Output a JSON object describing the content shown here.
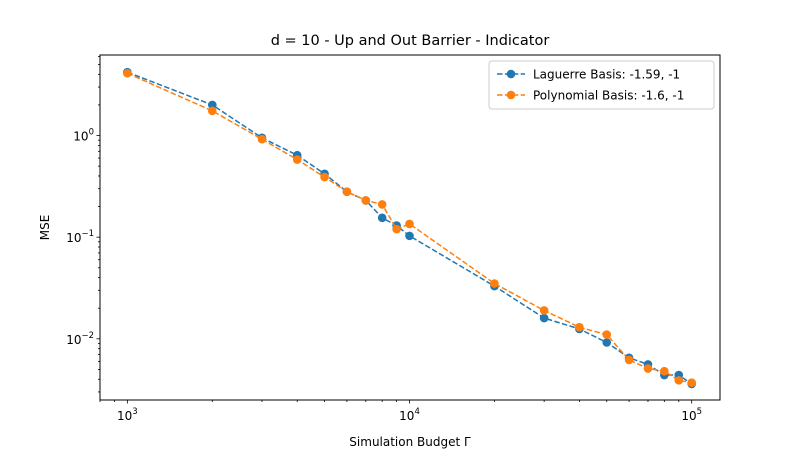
{
  "chart_data": {
    "type": "line",
    "title": "d = 10 - Up and Out Barrier - Indicator",
    "xlabel": "Simulation Budget Γ",
    "ylabel": "MSE",
    "xscale": "log",
    "yscale": "log",
    "xlim": [
      800,
      126000
    ],
    "ylim": [
      0.0025,
      6.2
    ],
    "x_ticks": [
      {
        "value": 1000,
        "base": "10",
        "exp": "3"
      },
      {
        "value": 10000,
        "base": "10",
        "exp": "4"
      },
      {
        "value": 100000,
        "base": "10",
        "exp": "5"
      }
    ],
    "y_ticks": [
      {
        "value": 0.01,
        "base": "10",
        "exp": "−2"
      },
      {
        "value": 0.1,
        "base": "10",
        "exp": "−1"
      },
      {
        "value": 1,
        "base": "10",
        "exp": "0"
      }
    ],
    "grid": false,
    "legend_position": "top-right",
    "x": [
      1000,
      2000,
      3000,
      4000,
      5000,
      6000,
      7000,
      8000,
      9000,
      10000,
      20000,
      30000,
      40000,
      50000,
      60000,
      70000,
      80000,
      90000,
      100000
    ],
    "series": [
      {
        "name": "Laguerre Basis: -1.59, -1",
        "color": "#1f77b4",
        "values": [
          4.2,
          2.0,
          0.95,
          0.64,
          0.42,
          0.28,
          0.23,
          0.155,
          0.13,
          0.103,
          0.033,
          0.016,
          0.0125,
          0.0092,
          0.0065,
          0.0056,
          0.0044,
          0.0044,
          0.0036
        ]
      },
      {
        "name": "Polynomial Basis: -1.6, -1",
        "color": "#ff7f0e",
        "values": [
          4.1,
          1.75,
          0.92,
          0.58,
          0.39,
          0.28,
          0.23,
          0.21,
          0.12,
          0.135,
          0.035,
          0.019,
          0.013,
          0.011,
          0.0062,
          0.0051,
          0.0048,
          0.0039,
          0.0037
        ]
      }
    ]
  }
}
